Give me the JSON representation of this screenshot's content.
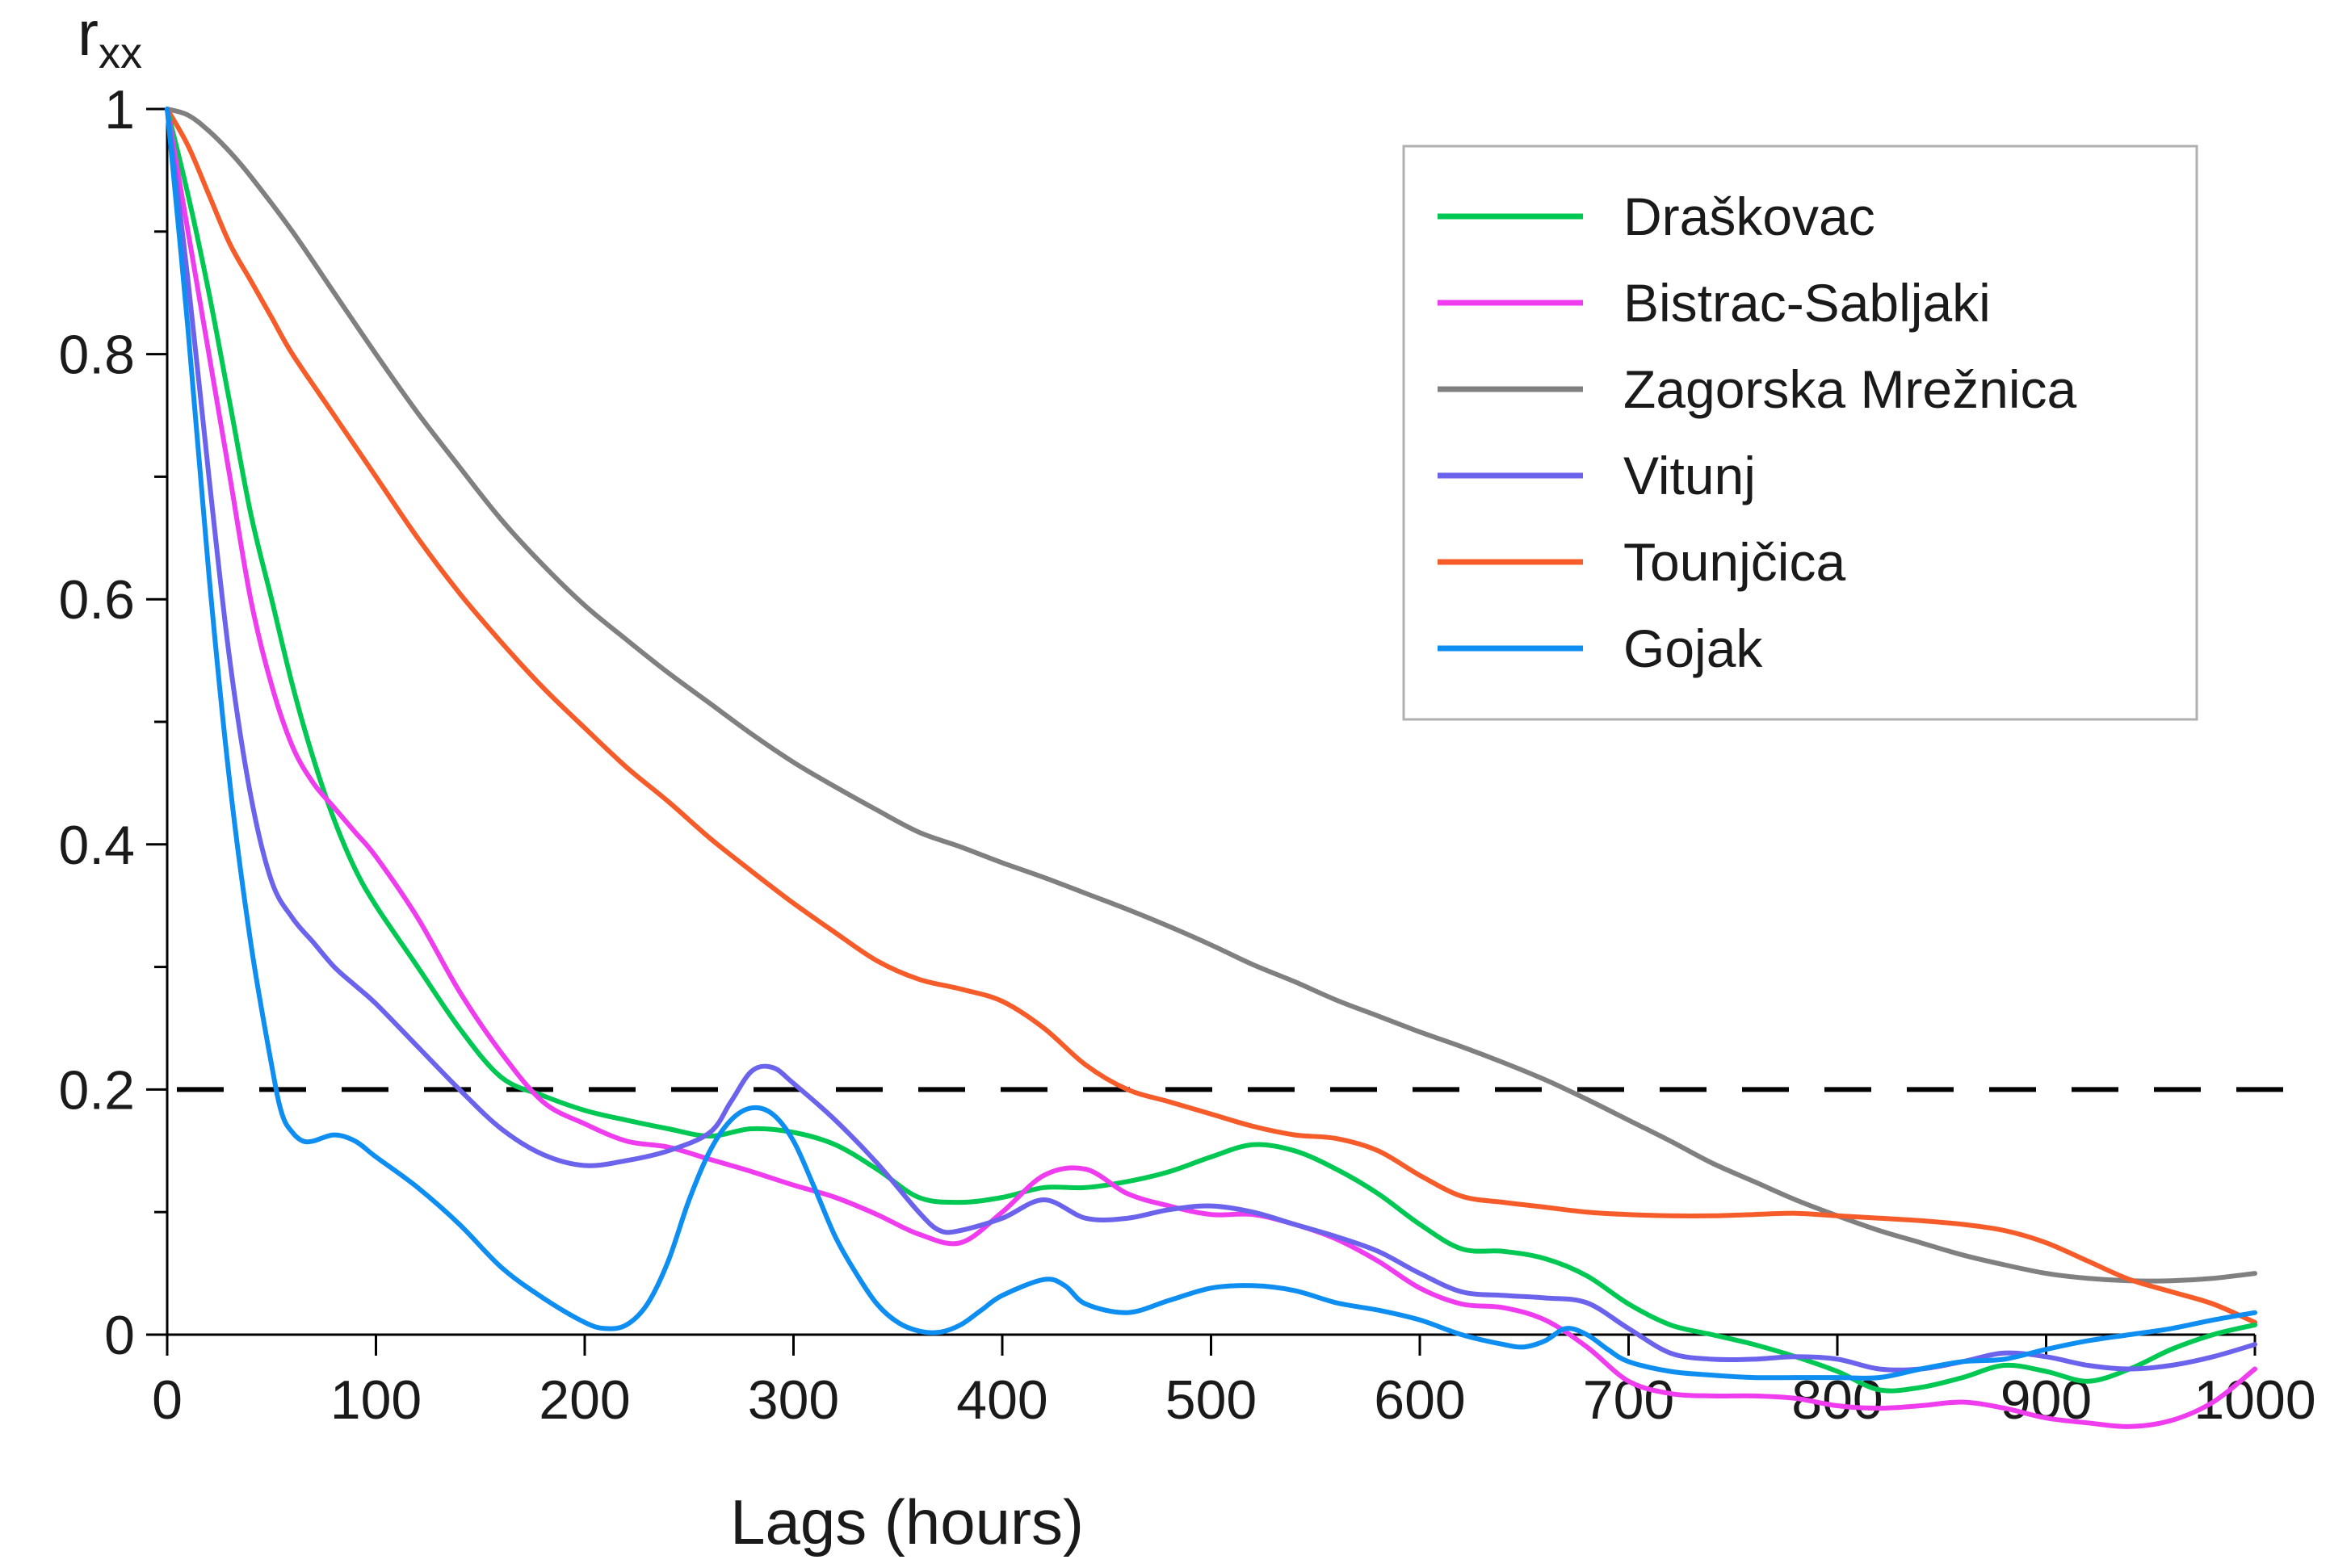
{
  "chart_data": {
    "type": "line",
    "xlabel": "Lags (hours)",
    "ylabel_main": "r",
    "ylabel_sub": "xx",
    "xlim": [
      0,
      1000
    ],
    "ylim": [
      0,
      1
    ],
    "x_ticks": [
      0,
      100,
      200,
      300,
      400,
      500,
      600,
      700,
      800,
      900,
      1000
    ],
    "x_tick_labels": [
      "0",
      "100",
      "200",
      "300",
      "400",
      "500",
      "600",
      "700",
      "800",
      "900",
      "1000"
    ],
    "y_ticks": [
      0,
      0.2,
      0.4,
      0.6,
      0.8,
      1
    ],
    "y_tick_labels": [
      "0",
      "0.2",
      "0.4",
      "0.6",
      "0.8",
      "1"
    ],
    "y_minor_ticks": [
      0.1,
      0.3,
      0.5,
      0.7,
      0.9
    ],
    "grid": false,
    "legend_position": "top-right",
    "reference_line": {
      "y": 0.2,
      "style": "dashed",
      "color": "#000000"
    },
    "series": [
      {
        "name": "Draškovac",
        "color": "#00c853",
        "x": [
          0,
          10,
          20,
          30,
          40,
          50,
          60,
          70,
          80,
          90,
          100,
          120,
          140,
          160,
          180,
          200,
          220,
          240,
          260,
          280,
          300,
          320,
          340,
          360,
          380,
          400,
          420,
          440,
          460,
          480,
          500,
          520,
          540,
          560,
          580,
          600,
          620,
          640,
          660,
          680,
          700,
          720,
          740,
          760,
          780,
          800,
          820,
          840,
          860,
          880,
          900,
          920,
          940,
          960,
          980,
          1000
        ],
        "y": [
          1.0,
          0.93,
          0.85,
          0.76,
          0.67,
          0.6,
          0.53,
          0.47,
          0.42,
          0.38,
          0.35,
          0.3,
          0.25,
          0.21,
          0.195,
          0.183,
          0.175,
          0.168,
          0.162,
          0.168,
          0.165,
          0.155,
          0.135,
          0.112,
          0.108,
          0.112,
          0.12,
          0.12,
          0.125,
          0.133,
          0.145,
          0.155,
          0.15,
          0.135,
          0.115,
          0.09,
          0.07,
          0.068,
          0.062,
          0.048,
          0.025,
          0.008,
          0.0,
          -0.008,
          -0.018,
          -0.03,
          -0.045,
          -0.043,
          -0.035,
          -0.025,
          -0.03,
          -0.038,
          -0.028,
          -0.012,
          0.0,
          0.008
        ]
      },
      {
        "name": "Bistrac-Sabljaki",
        "color": "#ee3cee",
        "x": [
          0,
          10,
          20,
          30,
          40,
          50,
          60,
          70,
          80,
          90,
          100,
          120,
          140,
          160,
          180,
          200,
          220,
          240,
          260,
          280,
          300,
          320,
          340,
          360,
          380,
          400,
          420,
          440,
          460,
          480,
          500,
          520,
          540,
          560,
          580,
          600,
          620,
          640,
          660,
          680,
          700,
          720,
          740,
          760,
          780,
          800,
          820,
          840,
          860,
          880,
          900,
          920,
          940,
          960,
          980,
          1000
        ],
        "y": [
          1.0,
          0.9,
          0.8,
          0.7,
          0.6,
          0.53,
          0.48,
          0.45,
          0.43,
          0.41,
          0.39,
          0.34,
          0.28,
          0.23,
          0.19,
          0.172,
          0.158,
          0.153,
          0.143,
          0.133,
          0.122,
          0.112,
          0.098,
          0.082,
          0.075,
          0.1,
          0.13,
          0.135,
          0.115,
          0.105,
          0.098,
          0.098,
          0.09,
          0.078,
          0.06,
          0.038,
          0.025,
          0.022,
          0.012,
          -0.01,
          -0.038,
          -0.048,
          -0.05,
          -0.05,
          -0.052,
          -0.058,
          -0.06,
          -0.058,
          -0.055,
          -0.06,
          -0.068,
          -0.072,
          -0.075,
          -0.07,
          -0.055,
          -0.028
        ]
      },
      {
        "name": "Zagorska Mrežnica",
        "color": "#808080",
        "x": [
          0,
          10,
          20,
          30,
          40,
          60,
          80,
          100,
          120,
          140,
          160,
          180,
          200,
          220,
          240,
          260,
          280,
          300,
          320,
          340,
          360,
          380,
          400,
          420,
          440,
          460,
          480,
          500,
          520,
          540,
          560,
          580,
          600,
          620,
          640,
          660,
          680,
          700,
          720,
          740,
          760,
          780,
          800,
          820,
          840,
          860,
          880,
          900,
          920,
          940,
          960,
          980,
          1000
        ],
        "y": [
          1.0,
          0.995,
          0.982,
          0.965,
          0.945,
          0.9,
          0.85,
          0.8,
          0.752,
          0.708,
          0.665,
          0.628,
          0.595,
          0.567,
          0.54,
          0.515,
          0.49,
          0.467,
          0.447,
          0.428,
          0.41,
          0.398,
          0.385,
          0.373,
          0.36,
          0.347,
          0.333,
          0.318,
          0.302,
          0.288,
          0.273,
          0.26,
          0.247,
          0.235,
          0.222,
          0.208,
          0.192,
          0.175,
          0.158,
          0.14,
          0.125,
          0.11,
          0.097,
          0.085,
          0.075,
          0.065,
          0.057,
          0.05,
          0.046,
          0.044,
          0.044,
          0.046,
          0.05
        ]
      },
      {
        "name": "Vitunj",
        "color": "#6b63ec",
        "x": [
          0,
          10,
          20,
          30,
          40,
          50,
          60,
          70,
          80,
          90,
          100,
          120,
          140,
          160,
          180,
          200,
          220,
          240,
          260,
          270,
          280,
          290,
          300,
          320,
          340,
          360,
          370,
          380,
          400,
          420,
          440,
          460,
          480,
          500,
          520,
          540,
          560,
          580,
          600,
          620,
          640,
          660,
          680,
          700,
          720,
          740,
          760,
          780,
          800,
          820,
          840,
          860,
          880,
          900,
          920,
          940,
          960,
          980,
          1000
        ],
        "y": [
          1.0,
          0.86,
          0.7,
          0.55,
          0.44,
          0.37,
          0.34,
          0.32,
          0.3,
          0.285,
          0.27,
          0.235,
          0.2,
          0.168,
          0.147,
          0.138,
          0.142,
          0.15,
          0.165,
          0.19,
          0.215,
          0.218,
          0.205,
          0.175,
          0.14,
          0.1,
          0.085,
          0.085,
          0.095,
          0.11,
          0.095,
          0.095,
          0.102,
          0.105,
          0.1,
          0.09,
          0.08,
          0.068,
          0.05,
          0.035,
          0.032,
          0.03,
          0.026,
          0.005,
          -0.015,
          -0.02,
          -0.02,
          -0.018,
          -0.02,
          -0.028,
          -0.028,
          -0.022,
          -0.015,
          -0.018,
          -0.025,
          -0.028,
          -0.025,
          -0.018,
          -0.008
        ]
      },
      {
        "name": "Tounjčica",
        "color": "#f55c2a",
        "x": [
          0,
          10,
          20,
          30,
          40,
          50,
          60,
          80,
          100,
          120,
          140,
          160,
          180,
          200,
          220,
          240,
          260,
          280,
          300,
          320,
          340,
          360,
          380,
          400,
          420,
          440,
          460,
          480,
          500,
          520,
          540,
          560,
          580,
          600,
          620,
          640,
          660,
          680,
          700,
          720,
          740,
          760,
          780,
          800,
          820,
          840,
          860,
          880,
          900,
          920,
          940,
          960,
          980,
          1000
        ],
        "y": [
          1.0,
          0.97,
          0.93,
          0.89,
          0.86,
          0.83,
          0.8,
          0.75,
          0.7,
          0.65,
          0.605,
          0.565,
          0.528,
          0.495,
          0.463,
          0.435,
          0.405,
          0.378,
          0.352,
          0.328,
          0.305,
          0.29,
          0.282,
          0.272,
          0.25,
          0.22,
          0.2,
          0.19,
          0.18,
          0.17,
          0.163,
          0.16,
          0.15,
          0.13,
          0.113,
          0.108,
          0.104,
          0.1,
          0.098,
          0.097,
          0.097,
          0.098,
          0.099,
          0.097,
          0.095,
          0.093,
          0.09,
          0.085,
          0.075,
          0.06,
          0.045,
          0.035,
          0.025,
          0.01
        ]
      },
      {
        "name": "Gojak",
        "color": "#0d8ef0",
        "x": [
          0,
          10,
          20,
          30,
          40,
          50,
          55,
          60,
          65,
          70,
          80,
          90,
          100,
          120,
          140,
          160,
          180,
          200,
          210,
          220,
          230,
          240,
          250,
          260,
          270,
          280,
          290,
          300,
          310,
          320,
          330,
          340,
          350,
          360,
          370,
          380,
          390,
          400,
          420,
          430,
          440,
          460,
          480,
          500,
          520,
          540,
          560,
          580,
          600,
          620,
          640,
          650,
          660,
          670,
          680,
          690,
          700,
          720,
          740,
          760,
          780,
          800,
          820,
          840,
          860,
          880,
          900,
          920,
          940,
          960,
          980,
          1000
        ],
        "y": [
          1.0,
          0.82,
          0.62,
          0.45,
          0.32,
          0.22,
          0.18,
          0.165,
          0.158,
          0.158,
          0.163,
          0.158,
          0.145,
          0.12,
          0.09,
          0.055,
          0.03,
          0.01,
          0.005,
          0.008,
          0.025,
          0.06,
          0.11,
          0.15,
          0.175,
          0.185,
          0.18,
          0.158,
          0.12,
          0.08,
          0.05,
          0.025,
          0.01,
          0.003,
          0.002,
          0.008,
          0.02,
          0.032,
          0.045,
          0.04,
          0.025,
          0.018,
          0.028,
          0.038,
          0.04,
          0.036,
          0.026,
          0.02,
          0.012,
          0.0,
          -0.008,
          -0.01,
          -0.005,
          0.005,
          0.0,
          -0.012,
          -0.022,
          -0.03,
          -0.033,
          -0.035,
          -0.035,
          -0.035,
          -0.035,
          -0.028,
          -0.022,
          -0.02,
          -0.012,
          -0.005,
          0.0,
          0.005,
          0.012,
          0.018
        ]
      }
    ]
  }
}
